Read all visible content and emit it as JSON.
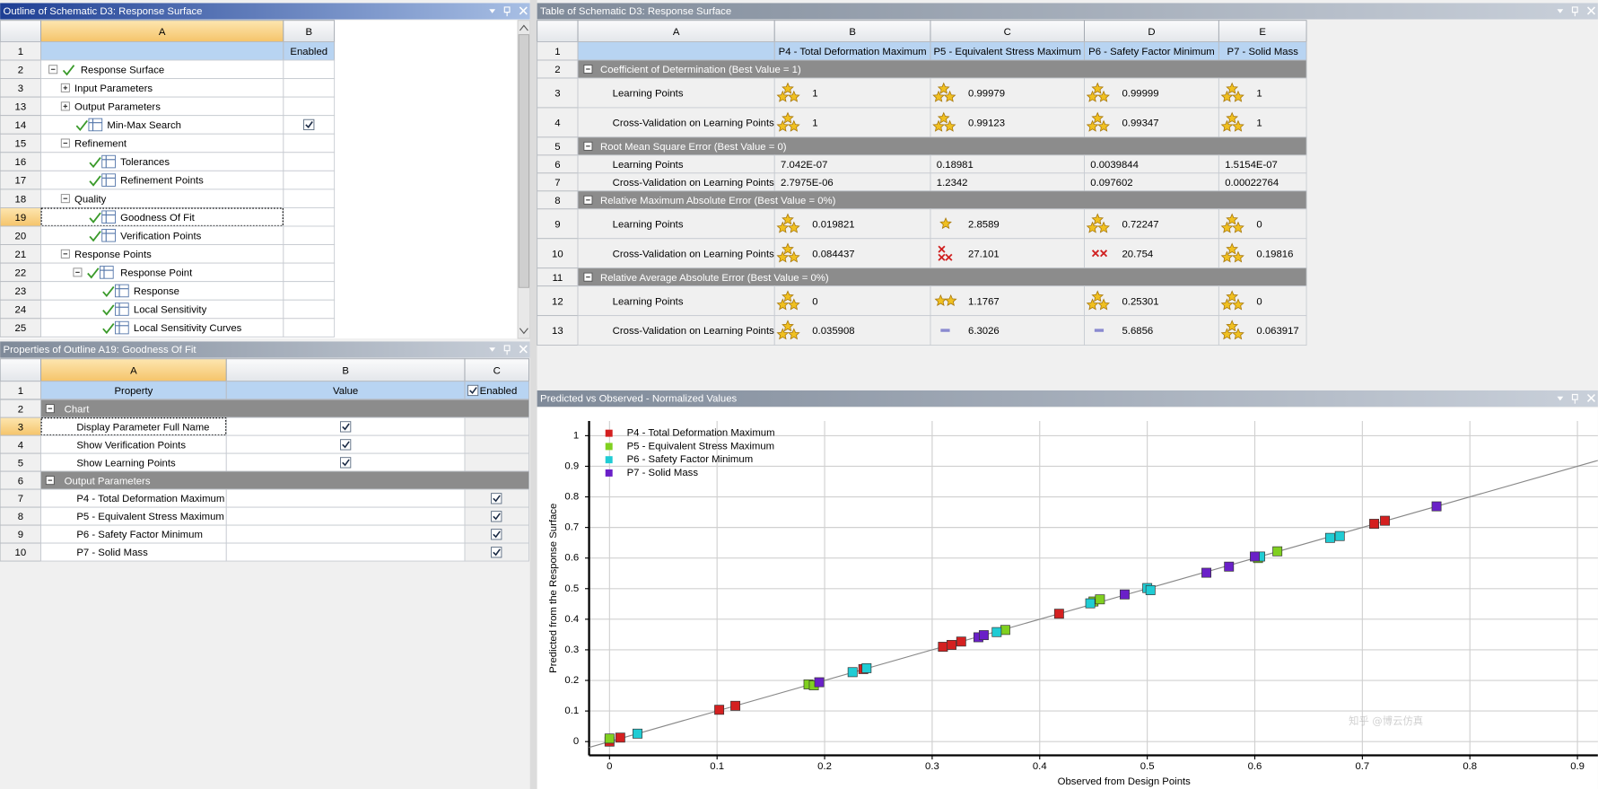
{
  "outline": {
    "title": "Outline of Schematic D3: Response Surface",
    "columns": [
      "A",
      "B"
    ],
    "header": {
      "num": "1",
      "b": "Enabled"
    },
    "rows": [
      {
        "num": "2",
        "label": "Response Surface",
        "level": 0,
        "expander": "minus",
        "check": true
      },
      {
        "num": "3",
        "label": "Input Parameters",
        "level": 1,
        "expander": "plus"
      },
      {
        "num": "13",
        "label": "Output Parameters",
        "level": 1,
        "expander": "plus"
      },
      {
        "num": "14",
        "label": "Min-Max Search",
        "level": 1,
        "check": true,
        "enabled": true
      },
      {
        "num": "15",
        "label": "Refinement",
        "level": 1,
        "expander": "minus"
      },
      {
        "num": "16",
        "label": "Tolerances",
        "level": 2,
        "check": true
      },
      {
        "num": "17",
        "label": "Refinement Points",
        "level": 2,
        "check": true
      },
      {
        "num": "18",
        "label": "Quality",
        "level": 1,
        "expander": "minus"
      },
      {
        "num": "19",
        "label": "Goodness Of Fit",
        "level": 2,
        "check": true,
        "selected": true
      },
      {
        "num": "20",
        "label": "Verification Points",
        "level": 2,
        "check": true
      },
      {
        "num": "21",
        "label": "Response Points",
        "level": 1,
        "expander": "minus"
      },
      {
        "num": "22",
        "label": "Response Point",
        "level": 2,
        "expander": "minus",
        "check": true
      },
      {
        "num": "23",
        "label": "Response",
        "level": 3,
        "check": true
      },
      {
        "num": "24",
        "label": "Local Sensitivity",
        "level": 3,
        "check": true
      },
      {
        "num": "25",
        "label": "Local Sensitivity Curves",
        "level": 3,
        "check": true
      }
    ]
  },
  "properties": {
    "title": "Properties of Outline A19: Goodness Of Fit",
    "columns": [
      "A",
      "B",
      "C"
    ],
    "header": {
      "num": "1",
      "a": "Property",
      "b": "Value",
      "c": "Enabled"
    },
    "rows": [
      {
        "num": "2",
        "section": "Chart"
      },
      {
        "num": "3",
        "label": "Display Parameter Full Name",
        "value": true,
        "selected": true
      },
      {
        "num": "4",
        "label": "Show Verification Points",
        "value": true
      },
      {
        "num": "5",
        "label": "Show Learning Points",
        "value": true
      },
      {
        "num": "6",
        "section": "Output Parameters"
      },
      {
        "num": "7",
        "label": "P4 - Total Deformation Maximum",
        "enabled": true
      },
      {
        "num": "8",
        "label": "P5 - Equivalent Stress Maximum",
        "enabled": true
      },
      {
        "num": "9",
        "label": "P6 - Safety Factor Minimum",
        "enabled": true
      },
      {
        "num": "10",
        "label": "P7 - Solid Mass",
        "enabled": true
      }
    ]
  },
  "table": {
    "title": "Table of Schematic D3: Response Surface",
    "columns": [
      "A",
      "B",
      "C",
      "D",
      "E"
    ],
    "header": {
      "num": "1",
      "cells": [
        "P4 - Total Deformation Maximum",
        "P5 - Equivalent Stress Maximum",
        "P6 - Safety Factor Minimum",
        "P7 - Solid Mass"
      ]
    },
    "rows": [
      {
        "num": "2",
        "section": "Coefficient of Determination (Best Value = 1)"
      },
      {
        "num": "3",
        "label": "Learning Points",
        "cells": [
          {
            "text": "1",
            "icon": "3star"
          },
          {
            "text": "0.99979",
            "icon": "3star"
          },
          {
            "text": "0.99999",
            "icon": "3star"
          },
          {
            "text": "1",
            "icon": "3star"
          }
        ]
      },
      {
        "num": "4",
        "label": "Cross-Validation on Learning Points",
        "cells": [
          {
            "text": "1",
            "icon": "3star"
          },
          {
            "text": "0.99123",
            "icon": "3star"
          },
          {
            "text": "0.99347",
            "icon": "3star"
          },
          {
            "text": "1",
            "icon": "3star"
          }
        ]
      },
      {
        "num": "5",
        "section": "Root Mean Square Error (Best Value = 0)"
      },
      {
        "num": "6",
        "label": "Learning Points",
        "cells": [
          {
            "text": "7.042E-07"
          },
          {
            "text": "0.18981"
          },
          {
            "text": "0.0039844"
          },
          {
            "text": "1.5154E-07"
          }
        ]
      },
      {
        "num": "7",
        "label": "Cross-Validation on Learning Points",
        "cells": [
          {
            "text": "2.7975E-06"
          },
          {
            "text": "1.2342"
          },
          {
            "text": "0.097602"
          },
          {
            "text": "0.00022764"
          }
        ]
      },
      {
        "num": "8",
        "section": "Relative Maximum Absolute Error (Best Value = 0%)"
      },
      {
        "num": "9",
        "label": "Learning Points",
        "cells": [
          {
            "text": "0.019821",
            "icon": "3star"
          },
          {
            "text": "2.8589",
            "icon": "1star"
          },
          {
            "text": "0.72247",
            "icon": "3star"
          },
          {
            "text": "0",
            "icon": "3star"
          }
        ]
      },
      {
        "num": "10",
        "label": "Cross-Validation on Learning Points",
        "cells": [
          {
            "text": "0.084437",
            "icon": "3star"
          },
          {
            "text": "27.101",
            "icon": "3x"
          },
          {
            "text": "20.754",
            "icon": "2x"
          },
          {
            "text": "0.19816",
            "icon": "3star"
          }
        ]
      },
      {
        "num": "11",
        "section": "Relative Average Absolute Error (Best Value = 0%)"
      },
      {
        "num": "12",
        "label": "Learning Points",
        "cells": [
          {
            "text": "0",
            "icon": "3star"
          },
          {
            "text": "1.1767",
            "icon": "2star"
          },
          {
            "text": "0.25301",
            "icon": "3star"
          },
          {
            "text": "0",
            "icon": "3star"
          }
        ]
      },
      {
        "num": "13",
        "label": "Cross-Validation on Learning Points",
        "cells": [
          {
            "text": "0.035908",
            "icon": "3star"
          },
          {
            "text": "6.3026",
            "icon": "dash"
          },
          {
            "text": "5.6856",
            "icon": "dash"
          },
          {
            "text": "0.063917",
            "icon": "3star"
          }
        ]
      }
    ]
  },
  "chart_data": {
    "type": "scatter",
    "title": "Predicted vs Observed - Normalized Values",
    "x_label": "Observed from Design Points",
    "y_label": "Predicted from the Response Surface",
    "xlim": [
      -0.019,
      0.919
    ],
    "ylim": [
      -0.045,
      1.048
    ],
    "xticks": [
      0,
      0.1,
      0.2,
      0.3,
      0.4,
      0.5,
      0.6,
      0.7,
      0.8,
      0.9
    ],
    "yticks": [
      0,
      0.1,
      0.2,
      0.3,
      0.4,
      0.5,
      0.6,
      0.7,
      0.8,
      0.9,
      1
    ],
    "grid": true,
    "legend": "upper left",
    "series": [
      {
        "name": "P4 - Total Deformation Maximum",
        "color": "#d42020",
        "x": [
          0,
          0.01,
          0.102,
          0.117,
          0.236,
          0.31,
          0.318,
          0.327,
          0.418,
          0.711,
          0.721
        ],
        "y": [
          0,
          0.013,
          0.104,
          0.117,
          0.237,
          0.31,
          0.316,
          0.327,
          0.418,
          0.712,
          0.722
        ]
      },
      {
        "name": "P5 - Equivalent Stress Maximum",
        "color": "#80d020",
        "x": [
          0,
          0.185,
          0.19,
          0.368,
          0.45,
          0.456,
          0.603,
          0.621
        ],
        "y": [
          0.01,
          0.187,
          0.184,
          0.365,
          0.458,
          0.465,
          0.6,
          0.622
        ]
      },
      {
        "name": "P6 - Safety Factor Minimum",
        "color": "#20ccd4",
        "x": [
          0.026,
          0.226,
          0.239,
          0.36,
          0.447,
          0.5,
          0.503,
          0.605,
          0.67,
          0.679
        ],
        "y": [
          0.026,
          0.227,
          0.24,
          0.358,
          0.452,
          0.502,
          0.495,
          0.605,
          0.666,
          0.672
        ]
      },
      {
        "name": "P7 - Solid Mass",
        "color": "#6a20c8",
        "x": [
          0.195,
          0.343,
          0.348,
          0.479,
          0.555,
          0.576,
          0.6,
          0.769
        ],
        "y": [
          0.194,
          0.341,
          0.348,
          0.481,
          0.552,
          0.572,
          0.605,
          0.769
        ]
      }
    ]
  },
  "watermark": "知乎 @博云仿真"
}
